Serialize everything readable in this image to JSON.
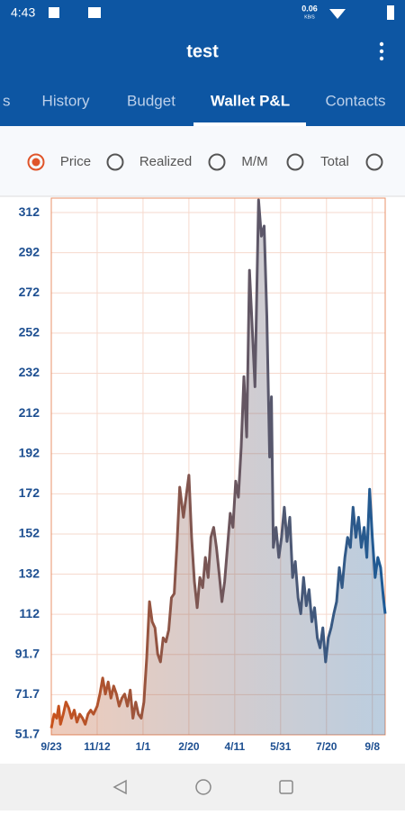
{
  "status_bar": {
    "time": "4:43",
    "speed": "0.06",
    "speed_unit": "KB/S"
  },
  "app_bar": {
    "title": "test"
  },
  "tabs": [
    "s",
    "History",
    "Budget",
    "Wallet P&L",
    "Contacts"
  ],
  "selected_tab": 3,
  "options": [
    "Price",
    "Realized",
    "M/M",
    "Total"
  ],
  "selected_option": 0,
  "chart_data": {
    "type": "area",
    "x": [
      0,
      3,
      6,
      8,
      10,
      13,
      16,
      19,
      22,
      25,
      28,
      31,
      34,
      37,
      40,
      43,
      46,
      50,
      53,
      56,
      59,
      62,
      65,
      68,
      71,
      74,
      77,
      80,
      83,
      86,
      89,
      92,
      95,
      98,
      101,
      104,
      107,
      110,
      113,
      116,
      119,
      122,
      125,
      128,
      131,
      134,
      137,
      140,
      144,
      150,
      153,
      156,
      159,
      162,
      165,
      168,
      171,
      174,
      177,
      180,
      183,
      186,
      189,
      192,
      195,
      198,
      201,
      204,
      207,
      210,
      213,
      216,
      219,
      222,
      226,
      229,
      232,
      235,
      238,
      240,
      242,
      245,
      248,
      251,
      254,
      257,
      260,
      263,
      266,
      269,
      272,
      275,
      278,
      281,
      284,
      287,
      290,
      293,
      296,
      299,
      302,
      305,
      308,
      311,
      314,
      317,
      320,
      323,
      326,
      329,
      332,
      335,
      338,
      341,
      344,
      347,
      350,
      353,
      356,
      359,
      362,
      364
    ],
    "values": [
      55,
      62,
      60,
      66,
      57,
      62,
      68,
      65,
      60,
      64,
      58,
      62,
      60,
      57,
      62,
      64,
      62,
      66,
      72,
      80,
      72,
      78,
      70,
      76,
      72,
      66,
      70,
      72,
      66,
      74,
      60,
      68,
      62,
      60,
      68,
      90,
      118,
      108,
      105,
      92,
      88,
      100,
      98,
      104,
      120,
      122,
      146,
      175,
      160,
      181,
      150,
      128,
      115,
      130,
      125,
      140,
      130,
      150,
      155,
      145,
      132,
      118,
      128,
      145,
      162,
      155,
      178,
      170,
      195,
      230,
      200,
      283,
      255,
      225,
      318,
      300,
      305,
      260,
      190,
      220,
      145,
      155,
      140,
      150,
      165,
      148,
      160,
      130,
      138,
      120,
      112,
      130,
      116,
      124,
      108,
      115,
      100,
      95,
      105,
      88,
      100,
      105,
      112,
      118,
      135,
      125,
      140,
      150,
      145,
      165,
      150,
      160,
      145,
      155,
      140,
      174,
      150,
      130,
      140,
      135,
      120,
      112
    ],
    "colors": [
      "#c9521c",
      "#1c5a96"
    ],
    "xlim": [
      0,
      364
    ],
    "xticks": [
      {
        "value": 0,
        "label": "9/23"
      },
      {
        "value": 50,
        "label": "11/12"
      },
      {
        "value": 100,
        "label": "1/1"
      },
      {
        "value": 150,
        "label": "2/20"
      },
      {
        "value": 200,
        "label": "4/11"
      },
      {
        "value": 250,
        "label": "5/31"
      },
      {
        "value": 300,
        "label": "7/20"
      },
      {
        "value": 350,
        "label": "9/8"
      }
    ],
    "ylim": [
      51.7,
      318.9
    ],
    "yticks": [
      51.7,
      71.7,
      91.7,
      {
        "value": 111.7,
        "label": "112"
      },
      {
        "value": 131.7,
        "label": "132"
      },
      {
        "value": 151.7,
        "label": "152"
      },
      {
        "value": 171.7,
        "label": "172"
      },
      {
        "value": 191.7,
        "label": "192"
      },
      {
        "value": 211.7,
        "label": "212"
      },
      {
        "value": 231.7,
        "label": "232"
      },
      {
        "value": 251.7,
        "label": "252"
      },
      {
        "value": 271.7,
        "label": "272"
      },
      {
        "value": 291.7,
        "label": "292"
      },
      {
        "value": 311.7,
        "label": "312"
      }
    ],
    "grid": true
  }
}
